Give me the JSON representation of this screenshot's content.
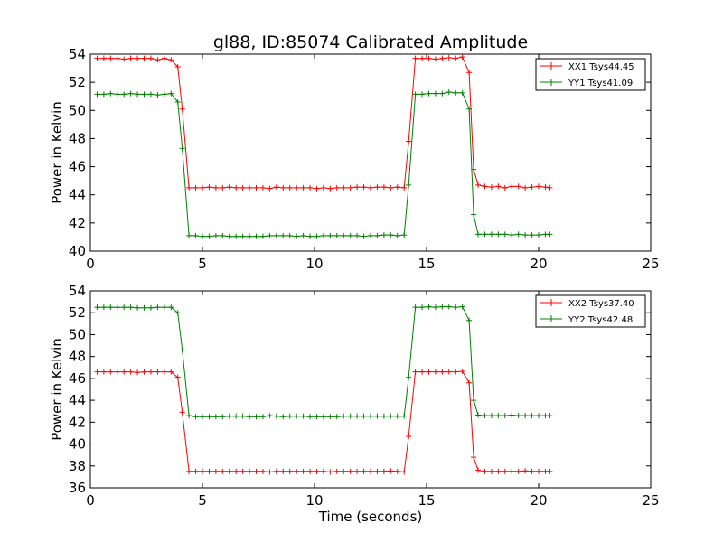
{
  "chart_data": [
    {
      "type": "line",
      "title": "gl88, ID:85074 Calibrated Amplitude",
      "xlabel": "",
      "ylabel": "Power in Kelvin",
      "xlim": [
        0,
        25
      ],
      "ylim": [
        40,
        54
      ],
      "x_ticks": [
        0,
        5,
        10,
        15,
        20,
        25
      ],
      "y_ticks": [
        40,
        42,
        44,
        46,
        48,
        50,
        52,
        54
      ],
      "grid": false,
      "legend": "top-right",
      "x": [
        0.3,
        0.6,
        0.9,
        1.2,
        1.5,
        1.8,
        2.1,
        2.4,
        2.7,
        3.0,
        3.3,
        3.6,
        3.9,
        4.1,
        4.4,
        4.7,
        5.0,
        5.3,
        5.6,
        5.9,
        6.2,
        6.5,
        6.8,
        7.1,
        7.4,
        7.7,
        8.0,
        8.3,
        8.6,
        8.9,
        9.2,
        9.5,
        9.8,
        10.1,
        10.4,
        10.7,
        11.0,
        11.3,
        11.6,
        11.9,
        12.2,
        12.5,
        12.8,
        13.1,
        13.4,
        13.7,
        14.0,
        14.2,
        14.5,
        14.8,
        15.1,
        15.4,
        15.7,
        16.0,
        16.3,
        16.6,
        16.9,
        17.1,
        17.3,
        17.6,
        17.9,
        18.2,
        18.5,
        18.8,
        19.1,
        19.4,
        19.7,
        20.0,
        20.3,
        20.5
      ],
      "series": [
        {
          "name": "XX1 Tsys44.45",
          "color": "#ff0000",
          "values": [
            53.7,
            53.7,
            53.7,
            53.7,
            53.65,
            53.7,
            53.7,
            53.7,
            53.7,
            53.6,
            53.7,
            53.6,
            53.1,
            50.1,
            44.5,
            44.5,
            44.5,
            44.55,
            44.5,
            44.5,
            44.55,
            44.5,
            44.5,
            44.5,
            44.5,
            44.5,
            44.45,
            44.55,
            44.5,
            44.5,
            44.5,
            44.5,
            44.5,
            44.45,
            44.5,
            44.45,
            44.5,
            44.5,
            44.5,
            44.55,
            44.55,
            44.5,
            44.55,
            44.55,
            44.5,
            44.55,
            44.5,
            47.8,
            53.7,
            53.7,
            53.7,
            53.65,
            53.7,
            53.75,
            53.7,
            53.8,
            52.7,
            45.8,
            44.7,
            44.6,
            44.55,
            44.6,
            44.5,
            44.6,
            44.6,
            44.5,
            44.55,
            44.6,
            44.55,
            44.5
          ]
        },
        {
          "name": "YY1 Tsys41.09",
          "color": "#008000",
          "values": [
            51.15,
            51.15,
            51.2,
            51.15,
            51.15,
            51.2,
            51.15,
            51.15,
            51.15,
            51.1,
            51.15,
            51.2,
            50.6,
            47.3,
            41.1,
            41.1,
            41.05,
            41.05,
            41.1,
            41.1,
            41.05,
            41.05,
            41.05,
            41.05,
            41.05,
            41.05,
            41.1,
            41.1,
            41.1,
            41.1,
            41.05,
            41.1,
            41.05,
            41.05,
            41.1,
            41.1,
            41.1,
            41.1,
            41.1,
            41.1,
            41.05,
            41.1,
            41.1,
            41.15,
            41.15,
            41.1,
            41.15,
            44.7,
            51.15,
            51.15,
            51.2,
            51.2,
            51.2,
            51.3,
            51.25,
            51.25,
            50.1,
            42.6,
            41.2,
            41.2,
            41.2,
            41.2,
            41.2,
            41.15,
            41.2,
            41.15,
            41.15,
            41.15,
            41.2,
            41.2
          ]
        }
      ]
    },
    {
      "type": "line",
      "title": "",
      "xlabel": "Time (seconds)",
      "ylabel": "Power in Kelvin",
      "xlim": [
        0,
        25
      ],
      "ylim": [
        36,
        54
      ],
      "x_ticks": [
        0,
        5,
        10,
        15,
        20,
        25
      ],
      "y_ticks": [
        36,
        38,
        40,
        42,
        44,
        46,
        48,
        50,
        52,
        54
      ],
      "grid": false,
      "legend": "top-right",
      "x": [
        0.3,
        0.6,
        0.9,
        1.2,
        1.5,
        1.8,
        2.1,
        2.4,
        2.7,
        3.0,
        3.3,
        3.6,
        3.9,
        4.1,
        4.4,
        4.7,
        5.0,
        5.3,
        5.6,
        5.9,
        6.2,
        6.5,
        6.8,
        7.1,
        7.4,
        7.7,
        8.0,
        8.3,
        8.6,
        8.9,
        9.2,
        9.5,
        9.8,
        10.1,
        10.4,
        10.7,
        11.0,
        11.3,
        11.6,
        11.9,
        12.2,
        12.5,
        12.8,
        13.1,
        13.4,
        13.7,
        14.0,
        14.2,
        14.5,
        14.8,
        15.1,
        15.4,
        15.7,
        16.0,
        16.3,
        16.6,
        16.9,
        17.1,
        17.3,
        17.6,
        17.9,
        18.2,
        18.5,
        18.8,
        19.1,
        19.4,
        19.7,
        20.0,
        20.3,
        20.5
      ],
      "series": [
        {
          "name": "XX2 Tsys37.40",
          "color": "#ff0000",
          "values": [
            46.6,
            46.6,
            46.6,
            46.6,
            46.6,
            46.6,
            46.55,
            46.6,
            46.6,
            46.6,
            46.6,
            46.6,
            46.1,
            42.9,
            37.5,
            37.5,
            37.5,
            37.5,
            37.5,
            37.5,
            37.5,
            37.5,
            37.5,
            37.5,
            37.5,
            37.5,
            37.45,
            37.5,
            37.5,
            37.5,
            37.5,
            37.5,
            37.5,
            37.5,
            37.5,
            37.45,
            37.5,
            37.5,
            37.5,
            37.5,
            37.5,
            37.5,
            37.5,
            37.5,
            37.55,
            37.5,
            37.45,
            40.7,
            46.6,
            46.6,
            46.6,
            46.6,
            46.6,
            46.6,
            46.6,
            46.65,
            45.6,
            38.8,
            37.6,
            37.5,
            37.5,
            37.5,
            37.5,
            37.5,
            37.5,
            37.55,
            37.5,
            37.5,
            37.5,
            37.5
          ]
        },
        {
          "name": "YY2 Tsys42.48",
          "color": "#008000",
          "values": [
            52.5,
            52.5,
            52.5,
            52.5,
            52.5,
            52.5,
            52.45,
            52.45,
            52.45,
            52.5,
            52.5,
            52.5,
            52.0,
            48.6,
            42.6,
            42.5,
            42.5,
            42.5,
            42.5,
            42.5,
            42.55,
            42.55,
            42.55,
            42.5,
            42.5,
            42.5,
            42.6,
            42.55,
            42.5,
            42.55,
            42.55,
            42.55,
            42.5,
            42.5,
            42.5,
            42.5,
            42.5,
            42.55,
            42.55,
            42.55,
            42.55,
            42.55,
            42.55,
            42.55,
            42.55,
            42.55,
            42.55,
            46.1,
            52.5,
            52.5,
            52.55,
            52.5,
            52.55,
            52.55,
            52.5,
            52.55,
            51.3,
            44.0,
            42.65,
            42.6,
            42.6,
            42.6,
            42.6,
            42.65,
            42.6,
            42.6,
            42.6,
            42.6,
            42.6,
            42.6
          ]
        }
      ]
    }
  ]
}
